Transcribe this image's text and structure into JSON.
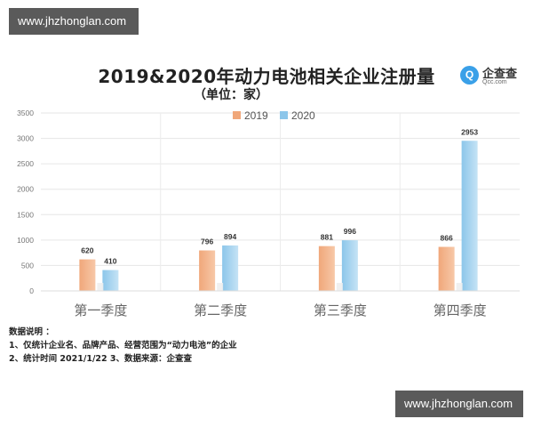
{
  "watermark_top": "www.jhzhonglan.com",
  "watermark_bottom": "www.jhzhonglan.com",
  "logo": {
    "name": "企查查",
    "sub": "Qcc.com",
    "mark": "Q"
  },
  "chart_data": {
    "type": "bar",
    "title": "2019&2020年动力电池相关企业注册量",
    "subtitle": "（单位：家）",
    "categories": [
      "第一季度",
      "第二季度",
      "第三季度",
      "第四季度"
    ],
    "series": [
      {
        "name": "2019",
        "values": [
          620,
          796,
          881,
          866
        ],
        "color": "#f0a77a",
        "labels": [
          "620",
          "796",
          "881",
          "866"
        ]
      },
      {
        "name": "2020",
        "values": [
          410,
          894,
          996,
          2953
        ],
        "color": "#8cc6ea",
        "labels": [
          "410",
          "894",
          "996",
          "2953"
        ]
      }
    ],
    "yticks": [
      "0",
      "500",
      "1000",
      "1500",
      "2000",
      "2500",
      "3000",
      "3500"
    ],
    "ylim": [
      0,
      3500
    ],
    "legend": "top-center",
    "grid": true
  },
  "notes": {
    "heading": "数据说明 ：",
    "line1": "1、仅统计企业名、品牌产品、经营范围为“动力电池”的企业",
    "line2": "2、统计时间  2021/1/22   3、数据来源：企查查"
  }
}
